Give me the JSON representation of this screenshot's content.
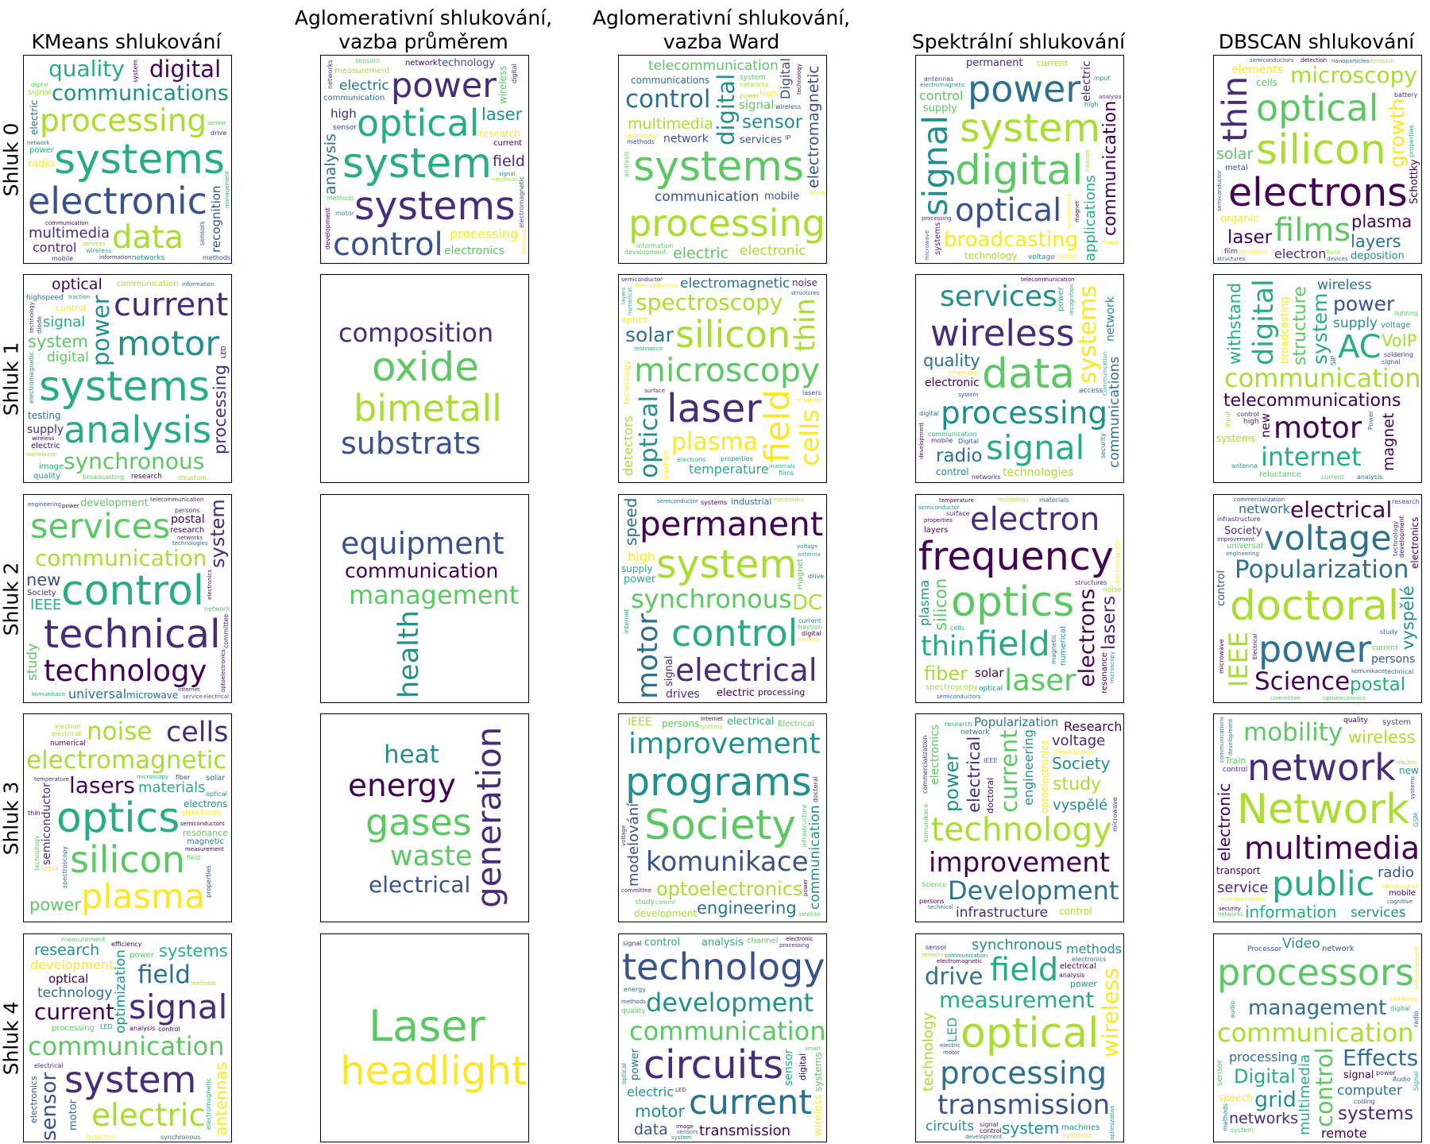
{
  "column_titles": [
    "KMeans shlukování",
    "Aglomerativní shlukování,\nvazba průměrem",
    "Aglomerativní shlukování,\nvazba Ward",
    "Spektrální shlukování",
    "DBSCAN shlukování"
  ],
  "row_labels": [
    "Shluk 0",
    "Shluk 1",
    "Shluk 2",
    "Shluk 3",
    "Shluk 4"
  ],
  "colormap": [
    "#440154",
    "#472c7a",
    "#3b518b",
    "#2c718e",
    "#21908d",
    "#27ad81",
    "#5cc863",
    "#aadc32",
    "#fde725"
  ],
  "clouds": [
    [
      [
        "systems",
        "processing",
        "electronic",
        "communications",
        "data",
        "quality",
        "recognition",
        "multimedia",
        "digital",
        "control",
        "power",
        "radio",
        "wireless",
        "signal",
        "networks",
        "information",
        "electric",
        "system",
        "services",
        "network",
        "methods",
        "sensor",
        "communication",
        "sensors",
        "mobile",
        "drive",
        "management",
        "digital",
        "communication channels"
      ],
      [
        "system",
        "systems",
        "optical",
        "power",
        "control",
        "communication",
        "processing",
        "electronics",
        "electric",
        "laser",
        "analysis",
        "technology",
        "research",
        "field",
        "measurement",
        "high",
        "current",
        "wireless",
        "network",
        "sensor",
        "electromagnetic",
        "networks",
        "development",
        "methods",
        "sensors",
        "motor",
        "signal",
        "digital",
        "electronic",
        "electrical"
      ],
      [
        "systems",
        "digital",
        "processing",
        "multimedia",
        "control",
        "communication",
        "telecommunication",
        "electromagnetic",
        "sensor",
        "Digital",
        "electric",
        "electronic",
        "communications",
        "network",
        "services",
        "signal",
        "mobile",
        "optimization",
        "high",
        "system",
        "wireless",
        "information",
        "networks",
        "power",
        "methods",
        "analysis",
        "drive",
        "technology",
        "development",
        "IP"
      ],
      [
        "digital",
        "system",
        "power",
        "signal",
        "optical",
        "communication",
        "broadcasting",
        "applications",
        "supply",
        "control",
        "electric",
        "permanent",
        "synchronous",
        "magnet",
        "voltage",
        "systems",
        "technology",
        "current",
        "analysis",
        "electromagnetic",
        "high",
        "internet",
        "processing",
        "microwave",
        "motor",
        "Power",
        "antennas",
        "telecommunications",
        "input"
      ],
      [
        "silicon",
        "electrons",
        "optical",
        "thin",
        "films",
        "microscopy",
        "layers",
        "elements",
        "laser",
        "electron",
        "growth",
        "deposition",
        "plasma",
        "solar",
        "Schottky",
        "semiconductors",
        "organic",
        "cells",
        "metal",
        "film",
        "nanoparticles",
        "properties",
        "structures",
        "semiconductor",
        "secondary",
        "field",
        "battery",
        "emission",
        "detection",
        "devices"
      ]
    ],
    [
      [
        "systems",
        "power",
        "analysis",
        "motor",
        "current",
        "synchronous",
        "system",
        "signal",
        "digital",
        "processing",
        "optical",
        "communication",
        "testing",
        "supply",
        "electric",
        "control",
        "image",
        "research",
        "quality",
        "highspeed",
        "broadcasting",
        "electromagnetic",
        "structure",
        "information",
        "technology",
        "traction",
        "LED",
        "diode",
        "wireless",
        "microwave"
      ],
      [
        "oxide",
        "bimetall",
        "composition",
        "substrats"
      ],
      [
        "microscopy",
        "laser",
        "silicon",
        "field",
        "optical",
        "spectroscopy",
        "thin",
        "cells",
        "plasma",
        "detectors",
        "solar",
        "electromagnetic",
        "temperature",
        "resonance",
        "magnetic",
        "optics",
        "technology",
        "noise",
        "surface",
        "electron",
        "semiconductor",
        "properties",
        "structures",
        "numerical",
        "electrons",
        "materials",
        "films",
        "semiconductors",
        "lasers",
        "layers"
      ],
      [
        "data",
        "processing",
        "wireless",
        "signal",
        "systems",
        "services",
        "electronic",
        "communications",
        "quality",
        "technologies",
        "radio",
        "communication",
        "network",
        "control",
        "system",
        "access",
        "power",
        "information",
        "digital",
        "networks",
        "Communication",
        "security",
        "development",
        "recognition",
        "Digital",
        "mobile",
        "telecommunication"
      ],
      [
        "communication",
        "structure",
        "telecommunications",
        "system",
        "AC",
        "motor",
        "digital",
        "internet",
        "broadcasting",
        "withstand",
        "power",
        "supply",
        "VoIP",
        "magnet",
        "wireless",
        "new",
        "reluctance",
        "systems",
        "voltage",
        "high",
        "Power",
        "control",
        "signal",
        "soldering",
        "current",
        "SIP",
        "lighting",
        "analysis",
        "antenna",
        "input"
      ]
    ],
    [
      [
        "control",
        "technical",
        "communication",
        "services",
        "system",
        "technology",
        "new",
        "IEEE",
        "development",
        "microwave",
        "postal",
        "study",
        "universal",
        "komunikace",
        "research",
        "network",
        "optoelectronics",
        "electronics",
        "Society",
        "technologies",
        "persons",
        "engineering",
        "telecommunication",
        "Internet",
        "electrical",
        "committee",
        "networks",
        "service",
        "Popularization",
        "power"
      ],
      [
        "management",
        "health",
        "communication",
        "equipment"
      ],
      [
        "synchronous",
        "system",
        "control",
        "permanent",
        "electrical",
        "motor",
        "DC",
        "drives",
        "high",
        "speed",
        "power",
        "supply",
        "magnet",
        "electric",
        "industrial",
        "signal",
        "processing",
        "semiconductor",
        "traction",
        "systems",
        "drive",
        "electronics",
        "analysis",
        "antenna",
        "current",
        "internet",
        "digital",
        "voltage"
      ],
      [
        "optics",
        "frequency",
        "electrons",
        "field",
        "electron",
        "laser",
        "thin",
        "fiber",
        "lasers",
        "silicon",
        "electromagnetic",
        "numerical",
        "plasma",
        "spectroscopy",
        "semiconductors",
        "solar",
        "resonance",
        "optical",
        "layers",
        "noise",
        "materials",
        "structures",
        "technology",
        "temperature",
        "magnetic",
        "cells",
        "surface",
        "properties",
        "microscopy",
        "semiconductor"
      ],
      [
        "doctoral",
        "Popularization",
        "power",
        "voltage",
        "Science",
        "electrical",
        "network",
        "IEEE",
        "postal",
        "vyspělé",
        "universal",
        "control",
        "electronics",
        "persons",
        "Society",
        "technical",
        "improvement",
        "commercialization",
        "engineering",
        "current",
        "development",
        "infrastructure",
        "microwave",
        "committee",
        "komunikace",
        "Electrical",
        "study",
        "research",
        "technology",
        "optoelectronics"
      ]
    ],
    [
      [
        "optics",
        "electromagnetic",
        "silicon",
        "plasma",
        "noise",
        "lasers",
        "cells",
        "materials",
        "semiconductors",
        "power",
        "structures",
        "magnetic",
        "electrons",
        "semiconductor",
        "microscopy",
        "resonance",
        "measurement",
        "numerical",
        "solar",
        "laser",
        "fiber",
        "electrical",
        "spectroscopy",
        "properties",
        "field",
        "temperature",
        "optical",
        "thin",
        "technology",
        "electron"
      ],
      [
        "gases",
        "generation",
        "energy",
        "waste",
        "heat",
        "electrical"
      ],
      [
        "Society",
        "programs",
        "improvement",
        "komunikace",
        "optoelectronics",
        "engineering",
        "development",
        "modelování",
        "electrical",
        "persons",
        "Electrical",
        "communication",
        "study",
        "IEEE",
        "systémy",
        "committee",
        "satellite",
        "control",
        "Internet",
        "electronics",
        "technology",
        "infrastructure",
        "doctoral",
        "research",
        "voltage",
        "power",
        "technical",
        "Popularization",
        "microwave",
        "commercialization"
      ],
      [
        "technology",
        "current",
        "optoelectronics",
        "improvement",
        "Development",
        "electrical",
        "Popularization",
        "vyspělé",
        "infrastructure",
        "engineering",
        "power",
        "study",
        "Society",
        "voltage",
        "Research",
        "electronics",
        "control",
        "doctoral",
        "network",
        "development",
        "persons",
        "microwave",
        "technical",
        "komunikace",
        "Science",
        "research",
        "IEEE",
        "Infrastructure",
        "commercialization"
      ],
      [
        "Network",
        "multimedia",
        "network",
        "public",
        "mobility",
        "wireless",
        "information",
        "service",
        "services",
        "transport",
        "radio",
        "infrastructure",
        "electronic",
        "system",
        "new",
        "mobile",
        "quality",
        "Train",
        "control",
        "communication",
        "cognitive",
        "electric",
        "GSM",
        "communications",
        "systems",
        "security",
        "networks",
        "telecommunication",
        "development"
      ]
    ],
    [
      [
        "communication",
        "optimization",
        "system",
        "signal",
        "electric",
        "current",
        "sensor",
        "field",
        "development",
        "antennas",
        "technology",
        "systems",
        "research",
        "motor",
        "optical",
        "processing",
        "electronics",
        "power",
        "analysis",
        "induction",
        "control",
        "electromagnetic",
        "efficiency",
        "measurement",
        "electrical",
        "synchronous",
        "methods",
        "LED"
      ],
      [
        "Laser",
        "headlight"
      ],
      [
        "communication",
        "circuits",
        "technology",
        "current",
        "development",
        "motor",
        "systems",
        "transmission",
        "power",
        "electric",
        "data",
        "wireless",
        "quality",
        "sensor",
        "analysis",
        "digital",
        "control",
        "processing",
        "channel",
        "sensors",
        "electronic",
        "methods",
        "system",
        "image",
        "energy",
        "signal",
        "optical",
        "smart",
        "measurement",
        "LED"
      ],
      [
        "optical",
        "processing",
        "measurement",
        "transmission",
        "field",
        "wireless",
        "system",
        "synchronous",
        "drive",
        "methods",
        "technology",
        "circuits",
        "power",
        "electrical",
        "LED",
        "machines",
        "electromagnetic",
        "communication",
        "systems",
        "development",
        "optimization",
        "electronics",
        "sensor",
        "electric",
        "motor",
        "signal",
        "analysis",
        "control",
        "sensors"
      ],
      [
        "communication",
        "control",
        "processors",
        "management",
        "multimedia",
        "Effects",
        "processing",
        "Digital",
        "computer",
        "grid",
        "networks",
        "systems",
        "remote",
        "sensor",
        "Video",
        "enhancement",
        "signal",
        "speech",
        "network",
        "Processor",
        "realtime",
        "audio",
        "power",
        "digital",
        "coding",
        "Audio",
        "Signal",
        "radio",
        "methods",
        "system"
      ]
    ]
  ]
}
